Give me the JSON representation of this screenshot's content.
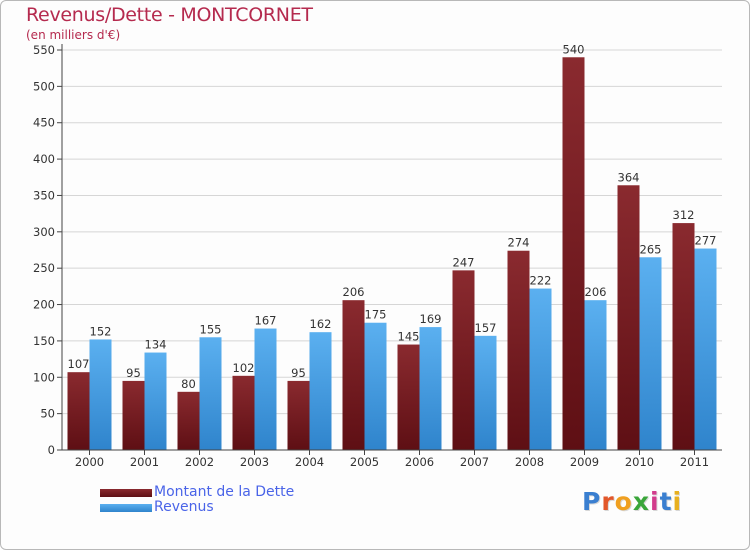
{
  "header": {
    "title": "Revenus/Dette - MONTCORNET",
    "subtitle": "(en milliers d'€)"
  },
  "legend": {
    "items": [
      {
        "label": "Montant de la Dette",
        "color": "#6b1a1f"
      },
      {
        "label": "Revenus",
        "color": "#3f9ae0"
      }
    ]
  },
  "logo": {
    "letters": [
      {
        "char": "P",
        "color": "#3a7fd0"
      },
      {
        "char": "r",
        "color": "#e2572a"
      },
      {
        "char": "o",
        "color": "#f0a020"
      },
      {
        "char": "x",
        "color": "#3aa63a"
      },
      {
        "char": "i",
        "color": "#d23c8c"
      },
      {
        "char": "t",
        "color": "#3a7fd0"
      },
      {
        "char": "i",
        "color": "#e8b020"
      }
    ]
  },
  "chart_data": {
    "type": "bar",
    "title": "Revenus/Dette - MONTCORNET",
    "subtitle": "(en milliers d'€)",
    "categories": [
      "2000",
      "2001",
      "2002",
      "2003",
      "2004",
      "2005",
      "2006",
      "2007",
      "2008",
      "2009",
      "2010",
      "2011"
    ],
    "series": [
      {
        "name": "Montant de la Dette",
        "values": [
          107,
          95,
          80,
          102,
          95,
          206,
          145,
          247,
          274,
          540,
          364,
          312
        ],
        "color": "#7a2024"
      },
      {
        "name": "Revenus",
        "values": [
          152,
          134,
          155,
          167,
          162,
          175,
          169,
          157,
          222,
          206,
          265,
          277
        ],
        "color": "#4aa3e8"
      }
    ],
    "yticks": [
      0,
      50,
      100,
      150,
      200,
      250,
      300,
      350,
      400,
      450,
      500,
      550
    ],
    "ylim": [
      0,
      550
    ],
    "grid": true,
    "legend_position": "bottom-left"
  }
}
